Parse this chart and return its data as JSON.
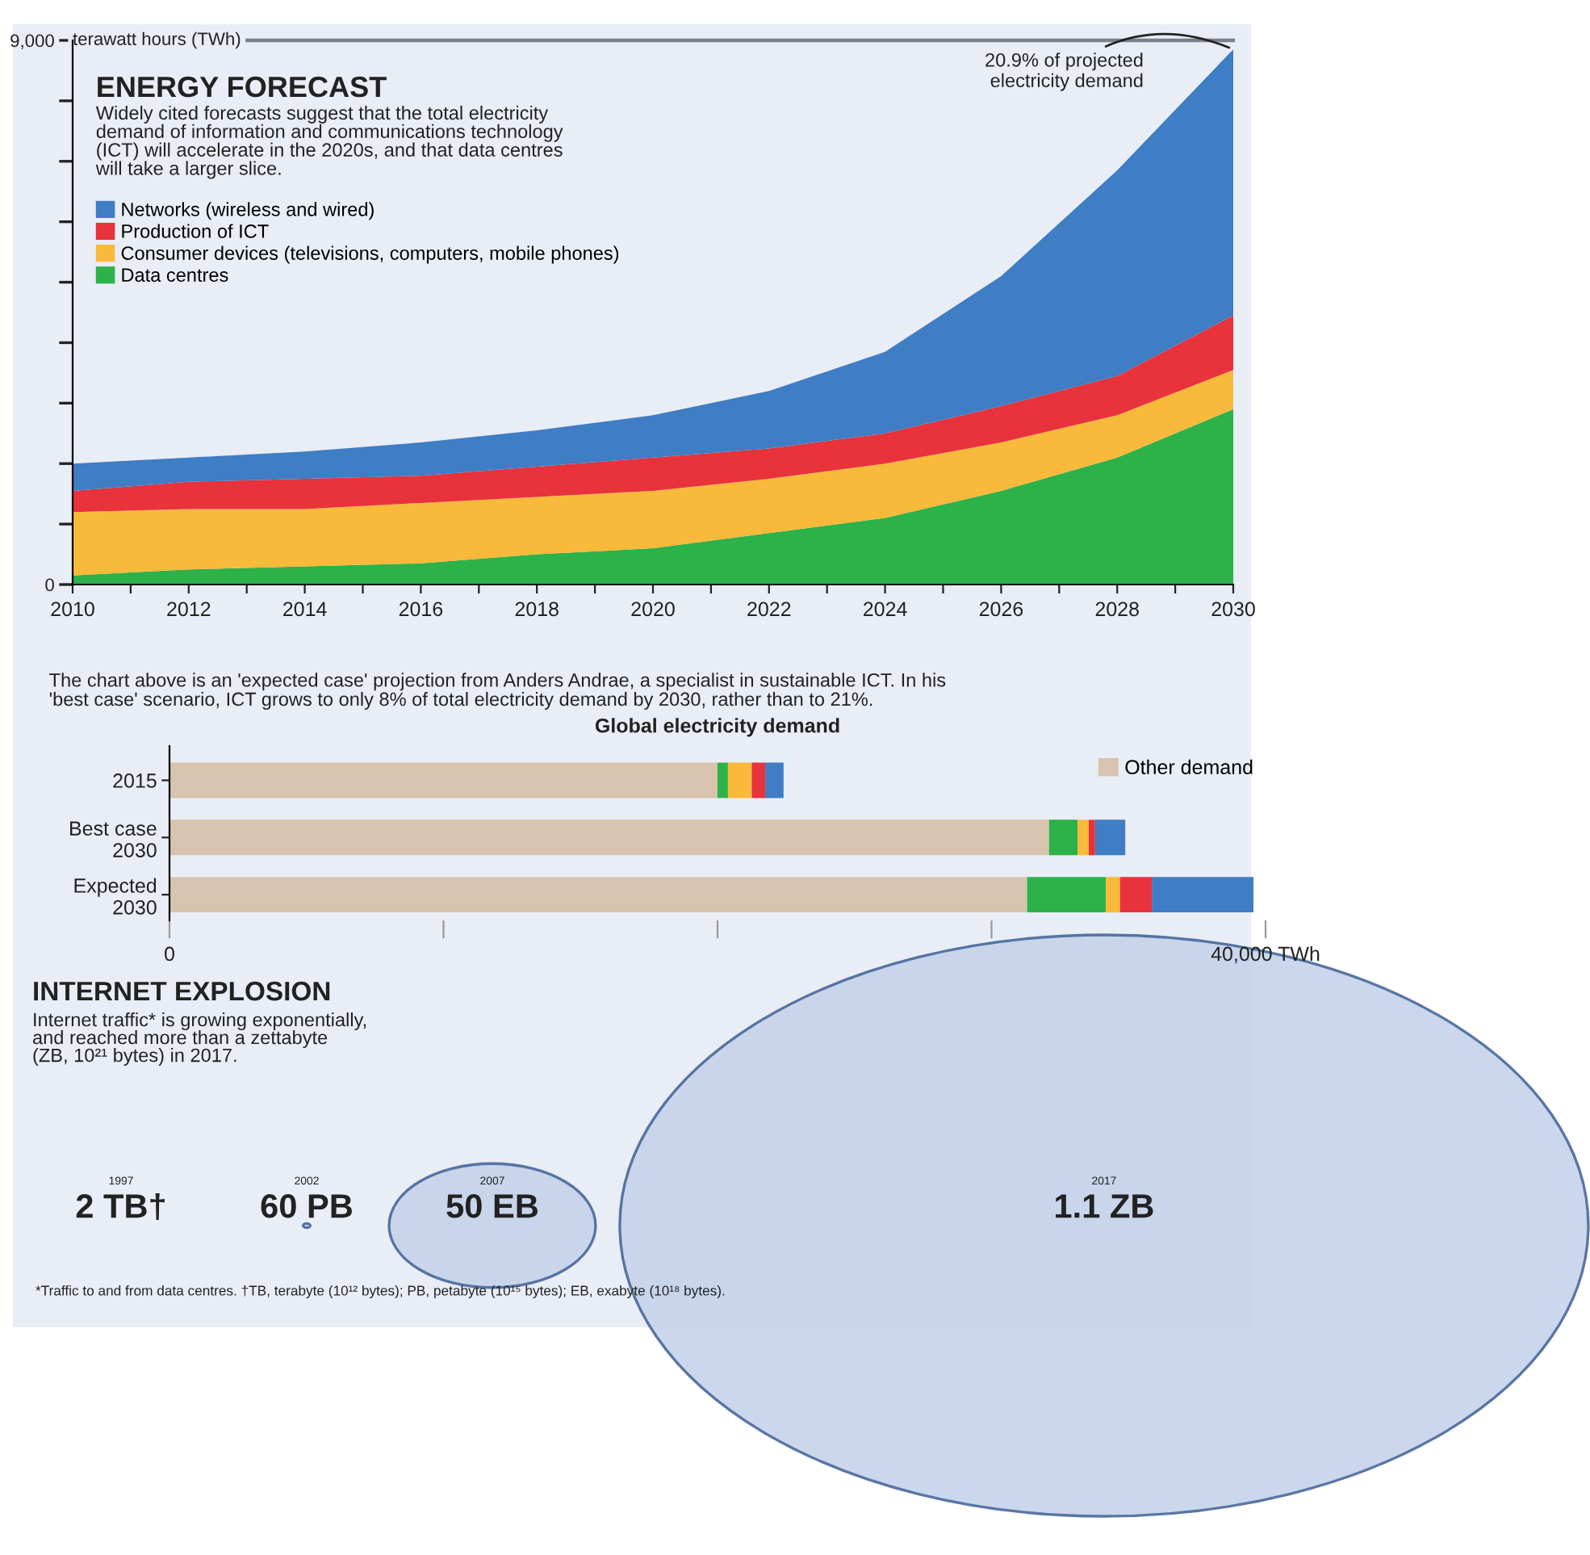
{
  "chart_data": [
    {
      "type": "area",
      "stacked": true,
      "title": "ENERGY FORECAST",
      "subtitle": "Widely cited forecasts suggest that the total electricity\ndemand of information and communications technology\n(ICT) will accelerate in the 2020s, and that data centres\nwill take a larger slice.",
      "x": [
        2010,
        2012,
        2014,
        2016,
        2018,
        2020,
        2022,
        2024,
        2026,
        2028,
        2030
      ],
      "series": [
        {
          "name": "Data centres",
          "color": "#2db24a",
          "values": [
            150,
            250,
            300,
            350,
            500,
            600,
            850,
            1100,
            1550,
            2100,
            2900
          ]
        },
        {
          "name": "Consumer devices (televisions, computers, mobile phones)",
          "color": "#f9b93a",
          "values": [
            1050,
            1000,
            950,
            1000,
            950,
            950,
            900,
            900,
            800,
            700,
            650
          ]
        },
        {
          "name": "Production of ICT",
          "color": "#e8323c",
          "values": [
            350,
            450,
            500,
            450,
            500,
            550,
            500,
            500,
            600,
            650,
            900
          ]
        },
        {
          "name": "Networks (wireless and wired)",
          "color": "#3f7dc4",
          "values": [
            450,
            400,
            450,
            550,
            600,
            700,
            950,
            1350,
            2150,
            3400,
            4400
          ]
        }
      ],
      "xlim": [
        2010,
        2030
      ],
      "xticks": [
        2010,
        {
          "value": 2011,
          "label": null
        },
        2012,
        {
          "value": 2013,
          "label": null
        },
        2014,
        {
          "value": 2015,
          "label": null
        },
        2016,
        {
          "value": 2017,
          "label": null
        },
        2018,
        {
          "value": 2019,
          "label": null
        },
        2020,
        {
          "value": 2021,
          "label": null
        },
        2022,
        {
          "value": 2023,
          "label": null
        },
        2024,
        {
          "value": 2025,
          "label": null
        },
        2026,
        {
          "value": 2027,
          "label": null
        },
        2028,
        {
          "value": 2029,
          "label": null
        },
        2030
      ],
      "ylim": [
        0,
        9000
      ],
      "yticks": [
        0,
        {
          "value": 1000,
          "label": null
        },
        {
          "value": 2000,
          "label": null
        },
        {
          "value": 3000,
          "label": null
        },
        {
          "value": 4000,
          "label": null
        },
        {
          "value": 5000,
          "label": null
        },
        {
          "value": 6000,
          "label": null
        },
        {
          "value": 7000,
          "label": null
        },
        {
          "value": 8000,
          "label": null
        },
        {
          "value": 9000,
          "label": "9,000"
        }
      ],
      "ylabel": "terawatt hours (TWh)",
      "ref_lines": [
        {
          "axis": "y",
          "value": 9000,
          "color": "#7a7f8a"
        }
      ],
      "annotations": [
        {
          "text": "20.9% of projected\nelectricity demand",
          "x": 2030,
          "y": 8850
        }
      ],
      "legend": "top left",
      "grid": false
    },
    {
      "type": "bar",
      "orientation": "horizontal",
      "stacked": true,
      "title": "Global electricity demand",
      "categories": [
        "2015",
        "Best case\n2030",
        "Expected\n2030"
      ],
      "series": [
        {
          "name": "Other demand",
          "color": "#d8c3ae",
          "values": [
            20000,
            32100,
            31300
          ]
        },
        {
          "color": "#2db24a",
          "values": [
            380,
            1040,
            2870
          ]
        },
        {
          "color": "#f9b93a",
          "values": [
            870,
            410,
            520
          ]
        },
        {
          "color": "#e8323c",
          "values": [
            490,
            230,
            1160
          ]
        },
        {
          "color": "#3f7dc4",
          "values": [
            670,
            1100,
            3710
          ]
        }
      ],
      "xlim": [
        0,
        40000
      ],
      "xticks": [
        0,
        {
          "value": 10000,
          "label": null
        },
        {
          "value": 20000,
          "label": null
        },
        {
          "value": 30000,
          "label": null
        },
        {
          "value": 40000,
          "label": "40,000 TWh"
        }
      ],
      "annotations": [
        "The chart above is an 'expected case' projection from Anders Andrae, a specialist in sustainable ICT. In his\n'best case' scenario, ICT grows to only 8% of total electricity demand by 2030, rather than to 21%."
      ],
      "legend": "top right"
    },
    {
      "type": "other",
      "title": "INTERNET EXPLOSION",
      "subtitle": "Internet traffic* is growing exponentially,\nand reached more than a zettabyte\n(ZB, 10²¹ bytes) in 2017.",
      "categories": [
        "1997",
        "2002",
        "2007",
        "2017"
      ],
      "value_labels": [
        "2 TB†",
        "60 PB",
        "50 EB",
        "1.1 ZB"
      ],
      "color": "#c3d1ea",
      "annotations": [
        "*Traffic to and from data centres. †TB, terabyte (10¹² bytes); PB, petabyte (10¹⁵ bytes); EB, exabyte (10¹⁸ bytes)."
      ]
    }
  ]
}
